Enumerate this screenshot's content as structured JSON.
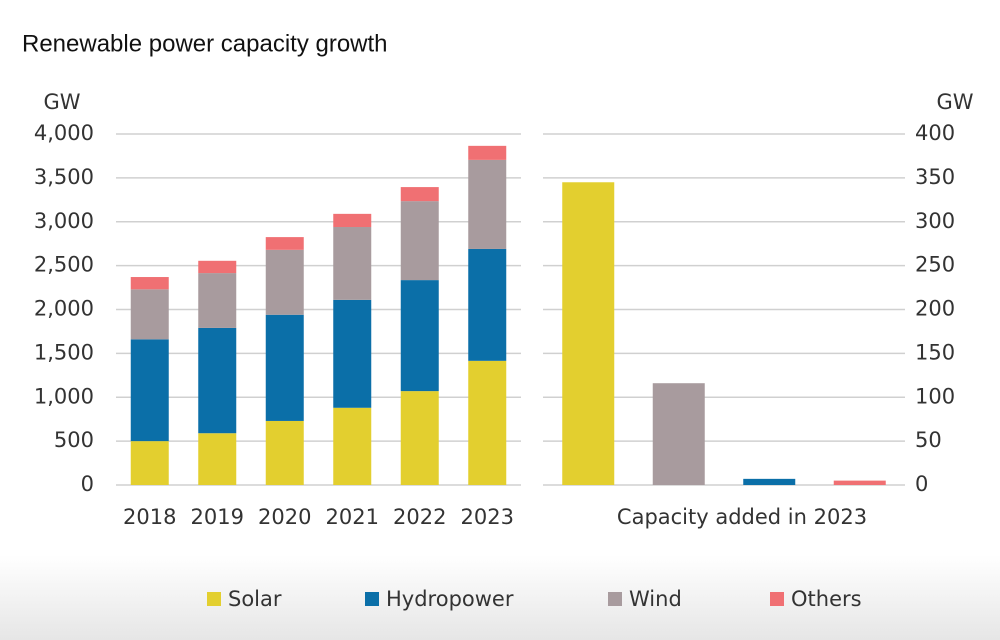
{
  "chart_data": [
    {
      "type": "stacked-bar",
      "title": "Renewable power capacity growth",
      "y_label": "GW",
      "categories": [
        "2018",
        "2019",
        "2020",
        "2021",
        "2022",
        "2023"
      ],
      "series": [
        {
          "name": "Solar",
          "color": "#e3cf2f",
          "values": [
            500,
            590,
            730,
            880,
            1070,
            1415
          ]
        },
        {
          "name": "Hydropower",
          "color": "#0b6fa8",
          "values": [
            1160,
            1200,
            1210,
            1230,
            1265,
            1275
          ]
        },
        {
          "name": "Wind",
          "color": "#a89b9e",
          "values": [
            570,
            625,
            740,
            830,
            900,
            1015
          ]
        },
        {
          "name": "Others",
          "color": "#f07073",
          "values": [
            140,
            140,
            145,
            150,
            160,
            160
          ]
        }
      ],
      "ylim": [
        0,
        4000
      ],
      "yticks": [
        0,
        500,
        {
          "value": 1000,
          "label": "1,000"
        },
        {
          "value": 1500,
          "label": "1,500"
        },
        {
          "value": 2000,
          "label": "2,000"
        },
        {
          "value": 2500,
          "label": "2,500"
        },
        {
          "value": 3000,
          "label": "3,000"
        },
        {
          "value": 3500,
          "label": "3,500"
        },
        {
          "value": 4000,
          "label": "4,000"
        }
      ],
      "grid": true,
      "legend": "bottom"
    },
    {
      "type": "bar",
      "x_label": "Capacity added in 2023",
      "y_label": "GW",
      "categories": [
        null,
        null,
        null,
        null
      ],
      "values": [
        345,
        116,
        7,
        5
      ],
      "colors": [
        "#e3cf2f",
        "#a89b9e",
        "#0b6fa8",
        "#f07073"
      ],
      "y2lim": [
        0,
        400
      ],
      "y2ticks": [
        0,
        50,
        100,
        150,
        200,
        250,
        300,
        350,
        400
      ],
      "grid": true
    }
  ]
}
